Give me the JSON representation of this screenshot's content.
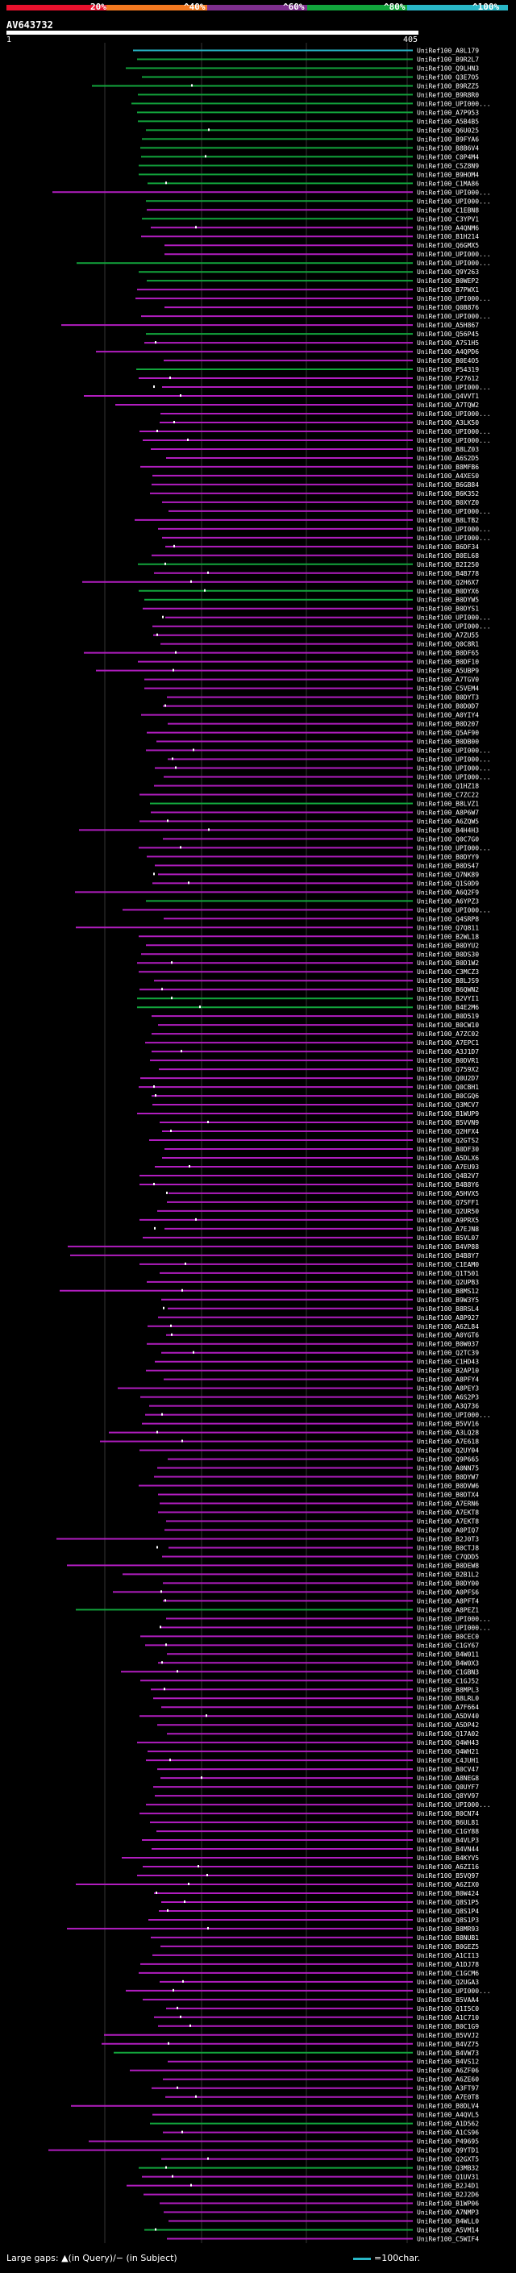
{
  "query": {
    "id": "AV643732",
    "start": "1",
    "end": "405"
  },
  "scale": {
    "ticks": [
      "20%",
      "^40%",
      "^60%",
      "^80%",
      "^100%"
    ],
    "colors": [
      "#e8112d",
      "#f47920",
      "#7e2f8e",
      "#12a53c",
      "#29b7c7"
    ]
  },
  "legend": {
    "text": "Large gaps: ▲(in Query)/− (in Subject)",
    "scale_text": "=100char."
  },
  "chart_data": {
    "type": "table",
    "hits": [
      "UniRef100_A0L179",
      "UniRef100_B9R2L7",
      "UniRef100_Q9LHN3",
      "UniRef100_Q3E7O5",
      "UniRef100_B9RZZ5",
      "UniRef100_B9R8R0",
      "UniRef100_UPI000...",
      "UniRef100_A7P953",
      "UniRef100_A5B4B5",
      "UniRef100_Q6U025",
      "UniRef100_B9FYA6",
      "UniRef100_B8B6V4",
      "UniRef100_C0P4M4",
      "UniRef100_C5Z8N9",
      "UniRef100_B9HOM4",
      "UniRef100_C1MA86",
      "UniRef100_UPI000...",
      "UniRef100_UPI000...",
      "UniRef100_C1EBN8",
      "UniRef100_C3YPV1",
      "UniRef100_A4QNM6",
      "UniRef100_B1H214",
      "UniRef100_Q6GMX5",
      "UniRef100_UPI000...",
      "UniRef100_UPI000...",
      "UniRef100_Q9Y263",
      "UniRef100_B0WEP2",
      "UniRef100_B7PWX1",
      "UniRef100_UPI000...",
      "UniRef100_Q0B876",
      "UniRef100_UPI000...",
      "UniRef100_A5H867",
      "UniRef100_Q56P45",
      "UniRef100_A7S1H5",
      "UniRef100_A4QPD6",
      "UniRef100_B0E4O5",
      "UniRef100_P54319",
      "UniRef100_P27612",
      "UniRef100_UPI000...",
      "UniRef100_Q4VVT1",
      "UniRef100_A7TQW2",
      "UniRef100_UPI000...",
      "UniRef100_A3LK50",
      "UniRef100_UPI000...",
      "UniRef100_UPI000...",
      "UniRef100_B8LZ03",
      "UniRef100_A6S2D5",
      "UniRef100_B8MFB6",
      "UniRef100_A4XES0",
      "UniRef100_B6GB84",
      "UniRef100_B6K352",
      "UniRef100_B0XYZ0",
      "UniRef100_UPI000...",
      "UniRef100_B8LTB2",
      "UniRef100_UPI000...",
      "UniRef100_UPI000...",
      "UniRef100_B6DF34",
      "UniRef100_B0EL68",
      "UniRef100_B2I250",
      "UniRef100_B4B778",
      "UniRef100_Q2H6X7",
      "UniRef100_B0DYX6",
      "UniRef100_B0DYW5",
      "UniRef100_B0DYS1",
      "UniRef100_UPI000...",
      "UniRef100_UPI000...",
      "UniRef100_A7ZU55",
      "UniRef100_Q0C8R1",
      "UniRef100_B0DF65",
      "UniRef100_B0DF10",
      "UniRef100_A5UBP9",
      "UniRef100_A7TGV0",
      "UniRef100_C5VEM4",
      "UniRef100_B0DYT3",
      "UniRef100_B0D0D7",
      "UniRef100_A0YIY4",
      "UniRef100_B0D207",
      "UniRef100_Q5AF90",
      "UniRef100_B0DB00",
      "UniRef100_UPI000...",
      "UniRef100_UPI000...",
      "UniRef100_UPI000...",
      "UniRef100_UPI000...",
      "UniRef100_Q1HZ18",
      "UniRef100_C7ZC22",
      "UniRef100_B8LVZ1",
      "UniRef100_A8P6W7",
      "UniRef100_A6ZQW5",
      "UniRef100_B4H4H3",
      "UniRef100_Q0C7G0",
      "UniRef100_UPI000...",
      "UniRef100_B0DYY9",
      "UniRef100_B0DS47",
      "UniRef100_Q7NK89",
      "UniRef100_Q1S0D9",
      "UniRef100_A6Q2F9",
      "UniRef100_A6YPZ3",
      "UniRef100_UPI000...",
      "UniRef100_Q4SRP8",
      "UniRef100_Q7Q811",
      "UniRef100_B2WL18",
      "UniRef100_B0DYU2",
      "UniRef100_B0DS30",
      "UniRef100_B0D1W2",
      "UniRef100_C3MCZ3",
      "UniRef100_B8LJS9",
      "UniRef100_B6QWN2",
      "UniRef100_B2VYI1",
      "UniRef100_B4E2M6",
      "UniRef100_B0D519",
      "UniRef100_B0CW10",
      "UniRef100_A7ZC02",
      "UniRef100_A7EPC1",
      "UniRef100_A3J1D7",
      "UniRef100_B0DVR1",
      "UniRef100_Q759X2",
      "UniRef100_Q0U2D7",
      "UniRef100_Q0CBH1",
      "UniRef100_B0CGQ6",
      "UniRef100_Q3MCV7",
      "UniRef100_B1WUP9",
      "UniRef100_B5VVN9",
      "UniRef100_Q2HFX4",
      "UniRef100_Q2GTS2",
      "UniRef100_B0DF30",
      "UniRef100_A5DLX6",
      "UniRef100_A7EU93",
      "UniRef100_Q4B2V7",
      "UniRef100_B4B8Y6",
      "UniRef100_A5HVX5",
      "UniRef100_Q7SFF1",
      "UniRef100_Q2UR50",
      "UniRef100_A9PRX5",
      "UniRef100_A7EJN8",
      "UniRef100_B5VL07",
      "UniRef100_B4VP88",
      "UniRef100_B4B8Y7",
      "UniRef100_C1EAM0",
      "UniRef100_Q1T501",
      "UniRef100_Q2UPB3",
      "UniRef100_B8MS12",
      "UniRef100_B9W3Y5",
      "UniRef100_B8RSL4",
      "UniRef100_A8P927",
      "UniRef100_A6ZL84",
      "UniRef100_A0YGT6",
      "UniRef100_B0W037",
      "UniRef100_Q2TC39",
      "UniRef100_C1HD43",
      "UniRef100_B2AP10",
      "UniRef100_A8PFY4",
      "UniRef100_A8PEY3",
      "UniRef100_A6S2P3",
      "UniRef100_A3Q736",
      "UniRef100_UPI000...",
      "UniRef100_B5VV16",
      "UniRef100_A3LQ28",
      "UniRef100_A7E618",
      "UniRef100_Q2UY04",
      "UniRef100_Q9P665",
      "UniRef100_A0NN75",
      "UniRef100_B0DYW7",
      "UniRef100_B0DVW6",
      "UniRef100_B0DTX4",
      "UniRef100_A7ERN6",
      "UniRef100_A7EKT8",
      "UniRef100_A7EKT8",
      "UniRef100_A0PIQ7",
      "UniRef100_B2J0T3",
      "UniRef100_B0CTJ8",
      "UniRef100_C7QDD5",
      "UniRef100_B0DEW8",
      "UniRef100_B2B1L2",
      "UniRef100_B0DY00",
      "UniRef100_A0PFS6",
      "UniRef100_A8PFT4",
      "UniRef100_A8PEZ1",
      "UniRef100_UPI000...",
      "UniRef100_UPI000...",
      "UniRef100_B0CEC0",
      "UniRef100_C1GY67",
      "UniRef100_B4W011",
      "UniRef100_B4W0X3",
      "UniRef100_C1GBN3",
      "UniRef100_C1GJ52",
      "UniRef100_B8MPL3",
      "UniRef100_B8LRL0",
      "UniRef100_A7F664",
      "UniRef100_A5DV40",
      "UniRef100_A5DP42",
      "UniRef100_Q17A02",
      "UniRef100_Q4WH43",
      "UniRef100_Q4WH21",
      "UniRef100_C4JUH1",
      "UniRef100_B0CV47",
      "UniRef100_A8NEG8",
      "UniRef100_Q0UYF7",
      "UniRef100_Q8YV97",
      "UniRef100_UPI000...",
      "UniRef100_B0CN74",
      "UniRef100_B6UL81",
      "UniRef100_C1GY88",
      "UniRef100_B4VLP3",
      "UniRef100_B4VN44",
      "UniRef100_B4KYV5",
      "UniRef100_A6ZI16",
      "UniRef100_B5VQ97",
      "UniRef100_A6ZIX0",
      "UniRef100_B0W424",
      "UniRef100_Q8S1P5",
      "UniRef100_Q8S1P4",
      "UniRef100_Q8S1P3",
      "UniRef100_B8MR93",
      "UniRef100_B8NUB1",
      "UniRef100_B0GEZ5",
      "UniRef100_A1CI13",
      "UniRef100_A1DJ78",
      "UniRef100_C1GCM6",
      "UniRef100_Q2UGA3",
      "UniRef100_UPI000...",
      "UniRef100_B5VAA4",
      "UniRef100_Q1I5C0",
      "UniRef100_A1C710",
      "UniRef100_B0C1G9",
      "UniRef100_B5VVJ2",
      "UniRef100_B4VZ75",
      "UniRef100_B4VW73",
      "UniRef100_B4VS12",
      "UniRef100_A6ZF06",
      "UniRef100_A6ZE60",
      "UniRef100_A3FT97",
      "UniRef100_A7E0T8",
      "UniRef100_B0DLV4",
      "UniRef100_A4QVL5",
      "UniRef100_A1D562",
      "UniRef100_A1CS96",
      "UniRef100_P49695",
      "UniRef100_Q9YTD1",
      "UniRef100_Q2GXT5",
      "UniRef100_Q3MB32",
      "UniRef100_Q1UV31",
      "UniRef100_B2J4D1",
      "UniRef100_B2J2D6",
      "UniRef100_B1WP06",
      "UniRef100_A7NMP3",
      "UniRef100_B4WLL0",
      "UniRef100_A5VM14",
      "UniRef100_C5WIF4"
    ],
    "colors": {
      "high": "#29b7c7",
      "mid": "#12a53c",
      "low": "#b11dbf"
    }
  }
}
